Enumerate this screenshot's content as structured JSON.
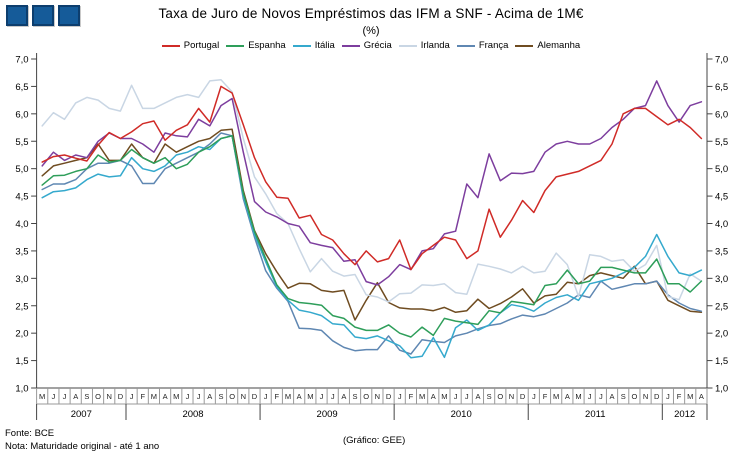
{
  "header": {
    "title": "Taxa de Juro de Novos Empréstimos das IFM a SNF - Acima de 1M€",
    "subtitle": "(%)"
  },
  "logo": {
    "squares": 3,
    "fill": "#155b99",
    "border": "#0d3e6e"
  },
  "footer": {
    "source": "Fonte: BCE",
    "note": "Nota: Maturidade original - até 1 ano",
    "credit": "(Gráfico: GEE)"
  },
  "chart_data": {
    "type": "line",
    "title": "Taxa de Juro de Novos Empréstimos das IFM a SNF - Acima de 1M€",
    "subtitle": "(%)",
    "xlabel": "",
    "ylabel": "",
    "ylim": [
      1.0,
      7.0
    ],
    "ytick_labels": [
      "7,0",
      "6,5",
      "6,0",
      "5,5",
      "5,0",
      "4,5",
      "4,0",
      "3,5",
      "3,0",
      "2,5",
      "2,0",
      "1,5",
      "1,0"
    ],
    "grid": false,
    "legend_position": "top",
    "x_months": [
      "M",
      "J",
      "J",
      "A",
      "S",
      "O",
      "N",
      "D",
      "J",
      "F",
      "M",
      "A",
      "M",
      "J",
      "J",
      "A",
      "S",
      "O",
      "N",
      "D",
      "J",
      "F",
      "M",
      "A",
      "M",
      "J",
      "J",
      "A",
      "S",
      "O",
      "N",
      "D",
      "J",
      "F",
      "M",
      "A",
      "M",
      "J",
      "J",
      "A",
      "S",
      "O",
      "N",
      "D",
      "J",
      "F",
      "M",
      "A",
      "M",
      "J",
      "J",
      "A",
      "S",
      "O",
      "N",
      "D",
      "J",
      "F",
      "M",
      "A"
    ],
    "years": [
      {
        "label": "2007",
        "months": 8
      },
      {
        "label": "2008",
        "months": 12
      },
      {
        "label": "2009",
        "months": 12
      },
      {
        "label": "2010",
        "months": 12
      },
      {
        "label": "2011",
        "months": 12
      },
      {
        "label": "2012",
        "months": 4
      }
    ],
    "series": [
      {
        "name": "Portugal",
        "color": "#d02b27",
        "values": [
          5.12,
          5.22,
          5.25,
          5.19,
          5.14,
          5.43,
          5.66,
          5.55,
          5.67,
          5.82,
          5.87,
          5.52,
          5.7,
          5.8,
          6.1,
          5.85,
          6.5,
          6.38,
          5.8,
          5.2,
          4.76,
          4.48,
          4.46,
          4.1,
          4.15,
          3.8,
          3.7,
          3.45,
          3.25,
          3.5,
          3.3,
          3.36,
          3.7,
          3.16,
          3.45,
          3.6,
          3.75,
          3.7,
          3.36,
          3.5,
          4.26,
          3.75,
          4.06,
          4.42,
          4.2,
          4.6,
          4.85,
          4.9,
          4.95,
          5.05,
          5.15,
          5.45,
          6.0,
          6.1,
          6.1,
          5.95,
          5.8,
          5.9,
          5.75,
          5.55
        ]
      },
      {
        "name": "Espanha",
        "color": "#2e9e5a",
        "values": [
          4.7,
          4.87,
          4.88,
          4.95,
          5.0,
          5.25,
          5.12,
          5.15,
          5.35,
          5.2,
          5.1,
          5.2,
          5.0,
          5.08,
          5.3,
          5.4,
          5.55,
          5.6,
          4.55,
          3.85,
          3.36,
          2.88,
          2.63,
          2.56,
          2.54,
          2.51,
          2.32,
          2.27,
          2.11,
          2.05,
          2.05,
          2.15,
          2.0,
          1.93,
          2.11,
          1.96,
          2.27,
          2.22,
          2.19,
          2.16,
          2.41,
          2.37,
          2.58,
          2.55,
          2.52,
          2.87,
          2.9,
          3.15,
          2.9,
          2.95,
          3.2,
          3.2,
          3.15,
          3.1,
          3.1,
          3.35,
          2.9,
          2.9,
          2.75,
          2.95
        ]
      },
      {
        "name": "Itália",
        "color": "#35a9cd",
        "values": [
          4.47,
          4.58,
          4.6,
          4.65,
          4.8,
          4.9,
          4.85,
          4.87,
          5.2,
          5.0,
          4.95,
          5.05,
          5.25,
          5.3,
          5.4,
          5.35,
          5.55,
          5.6,
          4.5,
          3.8,
          3.3,
          2.85,
          2.6,
          2.42,
          2.38,
          2.32,
          2.17,
          2.15,
          1.93,
          1.9,
          1.95,
          1.86,
          1.77,
          1.55,
          1.58,
          1.92,
          1.56,
          2.1,
          2.24,
          2.05,
          2.15,
          2.37,
          2.52,
          2.48,
          2.4,
          2.55,
          2.65,
          2.7,
          2.6,
          2.9,
          2.95,
          3.0,
          3.1,
          3.2,
          3.4,
          3.8,
          3.4,
          3.1,
          3.05,
          3.15
        ]
      },
      {
        "name": "Grécia",
        "color": "#7d3e9e",
        "values": [
          5.05,
          5.3,
          5.15,
          5.25,
          5.2,
          5.5,
          5.65,
          5.55,
          5.55,
          5.45,
          5.3,
          5.65,
          5.6,
          5.58,
          5.9,
          5.78,
          6.15,
          6.28,
          5.3,
          4.4,
          4.21,
          4.12,
          4.0,
          3.95,
          3.65,
          3.6,
          3.56,
          3.31,
          3.34,
          2.94,
          2.88,
          3.03,
          3.25,
          3.16,
          3.5,
          3.54,
          3.81,
          3.86,
          4.72,
          4.47,
          5.27,
          4.78,
          4.92,
          4.91,
          4.95,
          5.3,
          5.45,
          5.5,
          5.45,
          5.45,
          5.55,
          5.75,
          5.9,
          6.1,
          6.15,
          6.6,
          6.15,
          5.85,
          6.15,
          6.22
        ]
      },
      {
        "name": "Irlanda",
        "color": "#c9d6e4",
        "values": [
          5.78,
          6.02,
          5.9,
          6.2,
          6.3,
          6.25,
          6.1,
          6.05,
          6.52,
          6.1,
          6.1,
          6.2,
          6.3,
          6.35,
          6.3,
          6.6,
          6.62,
          6.4,
          5.55,
          4.85,
          4.54,
          4.18,
          4.0,
          3.54,
          3.12,
          3.36,
          3.13,
          3.04,
          3.07,
          2.7,
          2.66,
          2.57,
          2.72,
          2.73,
          2.88,
          2.87,
          2.9,
          2.74,
          2.71,
          3.26,
          3.22,
          3.17,
          3.1,
          3.22,
          3.1,
          3.13,
          3.46,
          3.25,
          2.67,
          3.43,
          3.4,
          3.31,
          3.34,
          3.13,
          3.25,
          3.6,
          2.67,
          2.61,
          3.08,
          2.95
        ]
      },
      {
        "name": "França",
        "color": "#5f87b2",
        "values": [
          4.62,
          4.72,
          4.72,
          4.8,
          5.0,
          5.1,
          5.1,
          5.15,
          5.05,
          4.73,
          4.73,
          5.0,
          5.1,
          5.2,
          5.3,
          5.45,
          5.65,
          5.6,
          4.45,
          3.75,
          3.14,
          2.82,
          2.58,
          2.09,
          2.08,
          2.05,
          1.86,
          1.74,
          1.68,
          1.7,
          1.7,
          1.95,
          1.69,
          1.62,
          1.88,
          1.85,
          1.83,
          1.95,
          2.0,
          2.08,
          2.14,
          2.17,
          2.26,
          2.33,
          2.3,
          2.35,
          2.45,
          2.55,
          2.7,
          2.65,
          2.95,
          2.8,
          2.85,
          2.9,
          2.9,
          2.95,
          2.7,
          2.55,
          2.45,
          2.4
        ]
      },
      {
        "name": "Alemanha",
        "color": "#6f4c21",
        "values": [
          4.87,
          5.05,
          5.1,
          5.15,
          5.2,
          5.45,
          5.15,
          5.15,
          5.45,
          5.2,
          5.1,
          5.45,
          5.3,
          5.4,
          5.5,
          5.55,
          5.7,
          5.72,
          4.6,
          3.87,
          3.45,
          3.12,
          2.82,
          2.91,
          2.9,
          2.78,
          2.75,
          2.78,
          2.24,
          2.6,
          2.92,
          2.56,
          2.46,
          2.44,
          2.44,
          2.41,
          2.47,
          2.38,
          2.41,
          2.62,
          2.45,
          2.54,
          2.66,
          2.81,
          2.55,
          2.68,
          2.71,
          2.93,
          2.9,
          3.05,
          3.1,
          3.05,
          3.0,
          3.22,
          2.9,
          2.95,
          2.6,
          2.5,
          2.4,
          2.38
        ]
      }
    ]
  }
}
